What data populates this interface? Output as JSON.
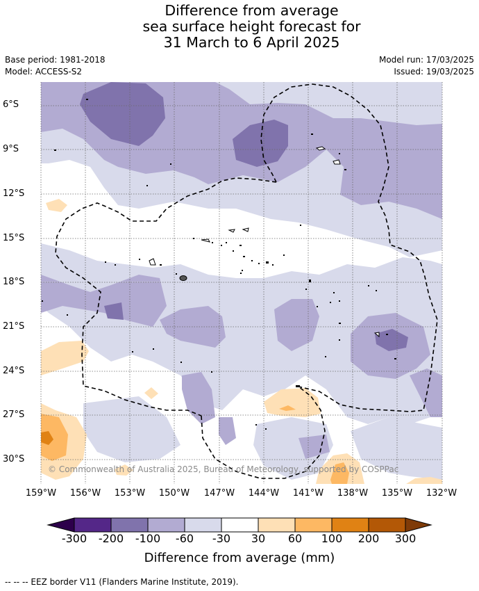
{
  "title_lines": [
    "Difference from average",
    "sea surface height forecast for",
    "31 March to 6 April 2025"
  ],
  "base_period": "Base period: 1981-2018",
  "model": "Model: ACCESS-S2",
  "model_run": "Model run: 17/03/2025",
  "issued": "Issued: 19/03/2025",
  "lat_labels": [
    "6°S",
    "9°S",
    "12°S",
    "15°S",
    "18°S",
    "21°S",
    "24°S",
    "27°S",
    "30°S"
  ],
  "lon_labels": [
    "159°W",
    "156°W",
    "153°W",
    "150°W",
    "147°W",
    "144°W",
    "141°W",
    "138°W",
    "135°W",
    "132°W"
  ],
  "copyright": "© Commonwealth of Australia 2025, Bureau of Meteorology, supported by COSPPac",
  "colorbar": {
    "title": "Difference from average (mm)",
    "labels": [
      "-300",
      "-200",
      "-100",
      "-60",
      "-30",
      "30",
      "60",
      "100",
      "200",
      "300"
    ],
    "colors": {
      "below_-300": "#2d004b",
      "-300_-200": "#542788",
      "-200_-100": "#8073ac",
      "-100_-60": "#b2abd2",
      "-60_-30": "#d8daeb",
      "-30_30": "#ffffff",
      "30_60": "#fee0b6",
      "60_100": "#fdb863",
      "100_200": "#e08214",
      "200_300": "#b35806",
      "above_300": "#7f3b08"
    }
  },
  "footer": "--  --  -- EEZ border V11 (Flanders Marine Institute, 2019)."
}
